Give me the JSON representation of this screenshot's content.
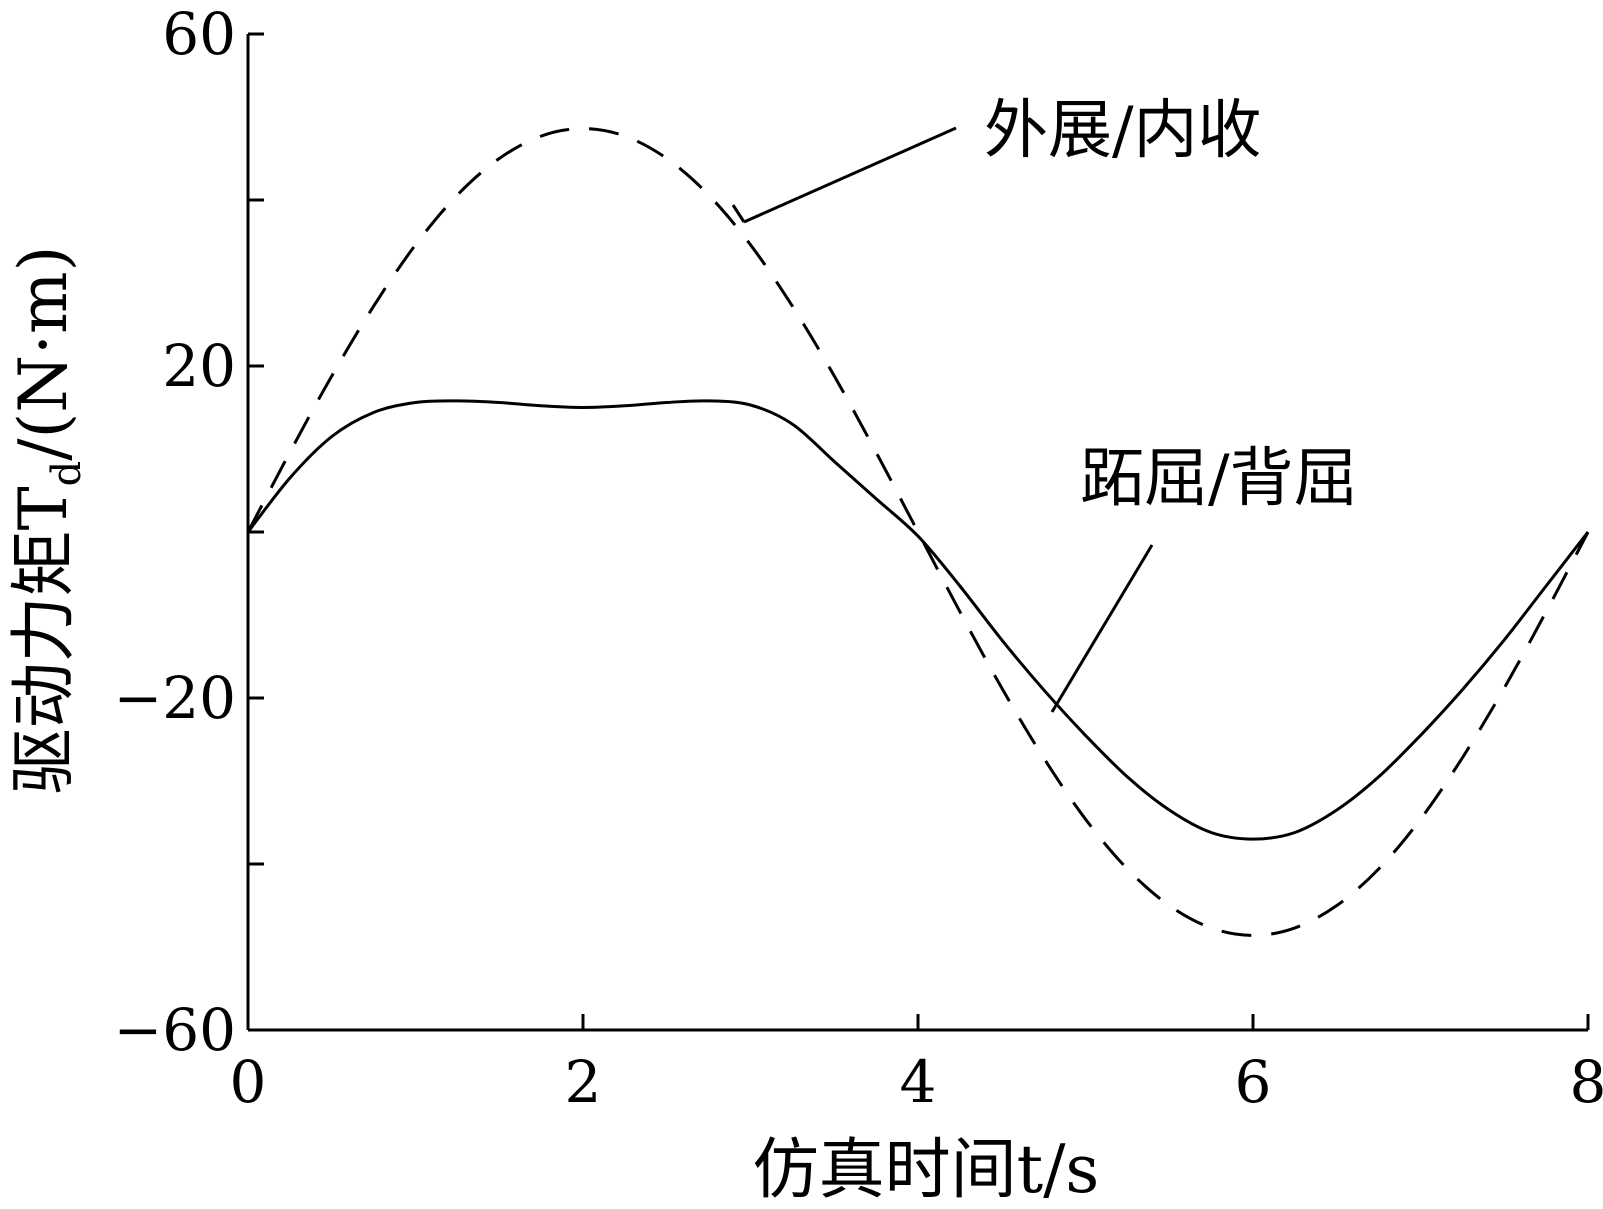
{
  "chart_data": {
    "type": "line",
    "xlabel": "仿真时间t/s",
    "ylabel": "驱动力矩T_d/(N·m)",
    "xlim": [
      0,
      8
    ],
    "ylim": [
      -60,
      60
    ],
    "x_ticks": [
      0,
      2,
      4,
      6,
      8
    ],
    "x_tick_labels": [
      "0",
      "2",
      "4",
      "6",
      "8"
    ],
    "y_ticks": [
      -60,
      -40,
      -20,
      0,
      20,
      40,
      60
    ],
    "y_tick_labels": [
      "−60",
      "",
      "−20",
      "",
      "20",
      "",
      "60"
    ],
    "grid": false,
    "series": [
      {
        "name": "外展/内收",
        "style": "dashed",
        "x": [
          0,
          0.25,
          0.5,
          0.75,
          1.0,
          1.25,
          1.5,
          1.75,
          2.0,
          2.25,
          2.5,
          2.75,
          3.0,
          3.25,
          3.5,
          3.75,
          4.0,
          4.25,
          4.5,
          4.75,
          5.0,
          5.25,
          5.5,
          5.75,
          6.0,
          6.25,
          6.5,
          6.75,
          7.0,
          7.25,
          7.5,
          7.75,
          8.0
        ],
        "y": [
          0,
          9.6,
          18.8,
          27.2,
          34.6,
          40.6,
          45.0,
          47.7,
          48.6,
          47.7,
          45.0,
          40.6,
          34.6,
          27.2,
          18.8,
          9.6,
          0,
          -9.6,
          -18.8,
          -27.2,
          -34.6,
          -40.6,
          -45.0,
          -47.7,
          -48.6,
          -47.7,
          -45.0,
          -40.6,
          -34.6,
          -27.2,
          -18.8,
          -9.6,
          0
        ]
      },
      {
        "name": "跖屈/背屈",
        "style": "solid",
        "x": [
          0,
          0.25,
          0.5,
          0.75,
          1.0,
          1.25,
          1.5,
          1.75,
          2.0,
          2.25,
          2.5,
          2.75,
          3.0,
          3.25,
          3.5,
          3.75,
          4.0,
          4.25,
          4.5,
          4.75,
          5.0,
          5.25,
          5.5,
          5.75,
          6.0,
          6.25,
          6.5,
          6.75,
          7.0,
          7.25,
          7.5,
          7.75,
          8.0
        ],
        "y": [
          0,
          6.5,
          11.5,
          14.4,
          15.6,
          15.8,
          15.6,
          15.2,
          15.0,
          15.2,
          15.6,
          15.8,
          15.3,
          13.0,
          8.5,
          4.0,
          -0.5,
          -6.5,
          -13.0,
          -19.0,
          -24.5,
          -29.5,
          -33.5,
          -36.2,
          -37.0,
          -36.2,
          -33.5,
          -29.5,
          -24.5,
          -19.0,
          -13.0,
          -6.5,
          0
        ]
      }
    ],
    "annotations": [
      {
        "text": "外展/内收",
        "series": "外展/内收"
      },
      {
        "text": "跖屈/背屈",
        "series": "跖屈/背屈"
      }
    ]
  }
}
